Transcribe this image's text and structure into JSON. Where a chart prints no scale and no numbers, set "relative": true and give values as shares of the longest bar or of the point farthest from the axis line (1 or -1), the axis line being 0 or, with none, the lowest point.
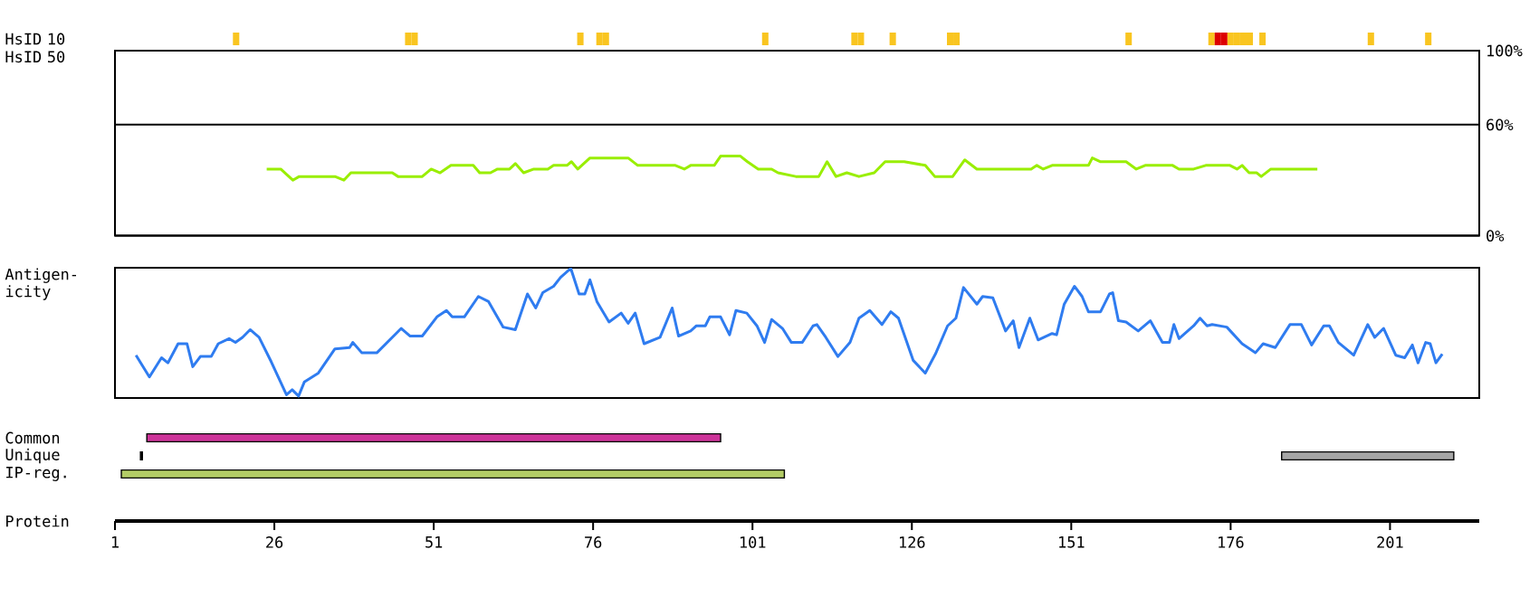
{
  "chart_data": [
    {
      "type": "bar",
      "ylabel": "HsID 10",
      "relative": true,
      "xlim": [
        1,
        215
      ],
      "tick_labels": false,
      "x": [
        20,
        47,
        48,
        74,
        77,
        78,
        103,
        117,
        118,
        123,
        132,
        133,
        160,
        173,
        174,
        175,
        176,
        177,
        178,
        179,
        181,
        198,
        207
      ],
      "values": [
        1,
        1,
        1,
        1,
        1,
        1,
        1,
        1,
        1,
        1,
        1,
        1,
        1,
        1,
        1,
        1,
        1,
        1,
        1,
        1,
        1,
        1,
        1
      ],
      "colors": [
        "#f9c520",
        "#f9c520",
        "#f9c520",
        "#f9c520",
        "#f9c520",
        "#f9c520",
        "#f9c520",
        "#f9c520",
        "#f9c520",
        "#f9c520",
        "#f9c520",
        "#f9c520",
        "#f9c520",
        "#f9c520",
        "#dd0000",
        "#dd0000",
        "#f9c520",
        "#f9c520",
        "#f9c520",
        "#f9c520",
        "#f9c520",
        "#f9c520",
        "#f9c520"
      ]
    },
    {
      "type": "line",
      "ylabel": "HsID 50",
      "color": "#99ee00",
      "xlim": [
        1,
        215
      ],
      "ylim": [
        0,
        100
      ],
      "grid": "y",
      "tick_labels": "y",
      "yticks": [
        {
          "value": 0,
          "label": "0%"
        },
        {
          "value": 60,
          "label": "60%"
        },
        {
          "value": 100,
          "label": "100%"
        }
      ],
      "x": [
        24.8,
        27.0,
        28.9,
        29.9,
        35.5,
        36.9,
        38.0,
        44.5,
        45.4,
        49.2,
        50.6,
        52.0,
        53.7,
        57.2,
        58.2,
        59.9,
        61.0,
        62.9,
        63.8,
        65.1,
        66.7,
        68.9,
        69.8,
        71.9,
        72.6,
        73.6,
        75.5,
        81.5,
        83.0,
        88.9,
        90.3,
        91.3,
        95.0,
        96.0,
        99.1,
        100.2,
        101.9,
        104.0,
        105.0,
        107.8,
        111.4,
        112.7,
        114.1,
        115.8,
        117.7,
        120.1,
        121.8,
        124.8,
        128.1,
        129.6,
        132.4,
        134.3,
        136.2,
        144.7,
        145.6,
        146.6,
        148.0,
        153.7,
        154.3,
        155.6,
        159.6,
        161.2,
        162.6,
        166.9,
        167.9,
        170.2,
        172.1,
        175.9,
        177.0,
        177.8,
        178.9,
        180.1,
        180.8,
        182.3,
        189.6
      ],
      "values": [
        36,
        36,
        30,
        32,
        32,
        30,
        34,
        34,
        32,
        32,
        36,
        34,
        38,
        38,
        34,
        34,
        36,
        36,
        39,
        34,
        36,
        36,
        38,
        38,
        40,
        36,
        42,
        42,
        38,
        38,
        36,
        38,
        38,
        43,
        43,
        40,
        36,
        36,
        34,
        32,
        32,
        40,
        32,
        34,
        32,
        34,
        40,
        40,
        38,
        32,
        32,
        41,
        36,
        36,
        38,
        36,
        38,
        38,
        42,
        40,
        40,
        36,
        38,
        38,
        36,
        36,
        38,
        38,
        36,
        38,
        34,
        34,
        32,
        36,
        36
      ]
    },
    {
      "type": "line",
      "ylabel": "Antigen-icity",
      "color": "#2f7cf0",
      "relative": true,
      "xlim": [
        1,
        215
      ],
      "tick_labels": false,
      "x": [
        4.3,
        6.4,
        8.3,
        9.3,
        10.9,
        12.3,
        13.2,
        14.4,
        16.1,
        17.2,
        18.9,
        19.9,
        21.0,
        22.2,
        23.6,
        25.5,
        27.9,
        28.8,
        29.8,
        30.7,
        32.9,
        35.5,
        37.8,
        38.3,
        39.7,
        42.1,
        45.9,
        47.3,
        49.2,
        51.5,
        53.0,
        53.9,
        55.8,
        58.0,
        59.6,
        61.9,
        63.8,
        65.7,
        67.0,
        68.1,
        69.8,
        70.9,
        72.5,
        73.8,
        74.7,
        75.5,
        76.6,
        78.5,
        80.4,
        81.5,
        82.6,
        84.0,
        86.5,
        88.4,
        89.4,
        91.3,
        92.2,
        93.6,
        94.3,
        96.0,
        97.4,
        98.4,
        100.1,
        101.7,
        102.9,
        104.0,
        105.7,
        107.1,
        108.8,
        110.5,
        111.1,
        112.5,
        114.4,
        116.3,
        117.7,
        119.4,
        121.3,
        122.7,
        123.9,
        126.2,
        128.1,
        129.7,
        131.6,
        132.9,
        134.1,
        136.2,
        137.1,
        138.7,
        140.7,
        141.9,
        142.8,
        144.5,
        145.8,
        148.0,
        148.7,
        149.9,
        151.5,
        152.7,
        153.7,
        155.6,
        157.0,
        157.5,
        158.4,
        159.6,
        161.5,
        163.4,
        165.3,
        166.4,
        167.1,
        167.9,
        170.2,
        171.2,
        172.3,
        173.1,
        175.4,
        177.8,
        179.9,
        181.1,
        183.0,
        185.3,
        187.1,
        188.7,
        190.6,
        191.5,
        192.9,
        195.3,
        197.5,
        198.6,
        200.0,
        201.9,
        203.3,
        204.5,
        205.4,
        206.6,
        207.3,
        208.2,
        209.2
      ],
      "values": [
        0.32,
        0.15,
        0.3,
        0.26,
        0.41,
        0.41,
        0.23,
        0.31,
        0.31,
        0.41,
        0.45,
        0.42,
        0.46,
        0.52,
        0.46,
        0.27,
        0.01,
        0.05,
        0,
        0.11,
        0.18,
        0.37,
        0.38,
        0.42,
        0.34,
        0.34,
        0.53,
        0.47,
        0.47,
        0.62,
        0.67,
        0.62,
        0.62,
        0.78,
        0.74,
        0.54,
        0.52,
        0.8,
        0.69,
        0.81,
        0.86,
        0.93,
        1,
        0.8,
        0.8,
        0.91,
        0.74,
        0.58,
        0.65,
        0.57,
        0.65,
        0.41,
        0.46,
        0.69,
        0.47,
        0.51,
        0.55,
        0.55,
        0.62,
        0.62,
        0.48,
        0.67,
        0.65,
        0.55,
        0.42,
        0.6,
        0.53,
        0.42,
        0.42,
        0.55,
        0.56,
        0.46,
        0.31,
        0.42,
        0.61,
        0.67,
        0.56,
        0.66,
        0.61,
        0.28,
        0.18,
        0.33,
        0.55,
        0.61,
        0.85,
        0.72,
        0.78,
        0.77,
        0.51,
        0.59,
        0.38,
        0.61,
        0.44,
        0.49,
        0.48,
        0.72,
        0.86,
        0.78,
        0.66,
        0.66,
        0.8,
        0.81,
        0.59,
        0.58,
        0.51,
        0.59,
        0.42,
        0.42,
        0.56,
        0.45,
        0.55,
        0.61,
        0.55,
        0.56,
        0.54,
        0.41,
        0.34,
        0.41,
        0.38,
        0.56,
        0.56,
        0.4,
        0.55,
        0.55,
        0.42,
        0.32,
        0.56,
        0.46,
        0.53,
        0.32,
        0.3,
        0.4,
        0.26,
        0.42,
        0.41,
        0.26,
        0.33
      ]
    },
    {
      "type": "bar",
      "orientation": "horizontal",
      "xlabel": "Protein",
      "xlim": [
        1,
        215
      ],
      "xticks": [
        1,
        26,
        51,
        76,
        101,
        126,
        151,
        176,
        201
      ],
      "categories": [
        "Common",
        "Unique",
        "IP-reg."
      ],
      "series": [
        {
          "colors": [
            "#cc3399",
            "#000000",
            "#b3cc66"
          ],
          "base": [
            6,
            5,
            2
          ],
          "values": [
            90,
            0.3,
            104
          ]
        },
        {
          "colors": [
            null,
            "#a6a6a6",
            null
          ],
          "base": [
            null,
            184,
            null
          ],
          "values": [
            null,
            27,
            null
          ]
        }
      ]
    }
  ]
}
